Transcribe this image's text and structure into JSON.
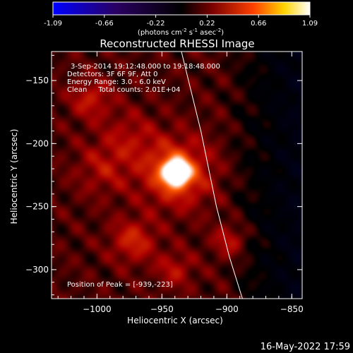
{
  "chart_data": {
    "type": "heatmap",
    "title": "Reconstructed RHESSI Image",
    "colorbar": {
      "min": -1.09,
      "max": 1.09,
      "ticks": [
        "-1.09",
        "-0.66",
        "-0.22",
        "0.22",
        "0.66",
        "1.09"
      ],
      "unit_label_parts": [
        "(photons cm",
        "-2",
        " s",
        "-1",
        " asec",
        "-2",
        ")"
      ],
      "colormap": [
        "#0000ff",
        "#1a0030",
        "#000000",
        "#7a0000",
        "#ff4000",
        "#ffd400",
        "#ffffff"
      ]
    },
    "annotations": {
      "line1": "3-Sep-2014 19:12:48.000 to 19:18:48.000",
      "line2": "Detectors: 3F 6F 9F, Att 0",
      "line3": "Energy Range: 3.0 - 6.0 keV",
      "line4": "Clean     Total counts: 2.01E+04",
      "peak": "Position of Peak = [-939,-223]"
    },
    "xlabel": "Heliocentric X (arcsec)",
    "ylabel": "Heliocentric Y (arcsec)",
    "xlim": [
      -1035,
      -842
    ],
    "ylim": [
      -323,
      -127
    ],
    "xticks": [
      -1000,
      -950,
      -900,
      -850
    ],
    "xtick_labels": [
      "−1000",
      "−950",
      "−900",
      "−850"
    ],
    "yticks": [
      -150,
      -200,
      -250,
      -300
    ],
    "ytick_labels": [
      "−150",
      "−200",
      "−250",
      "−300"
    ],
    "peak": {
      "x": -939,
      "y": -223
    },
    "sources": [
      {
        "x": -939,
        "y": -223,
        "intensity": 1.09,
        "sigma": 7
      },
      {
        "x": -939,
        "y": -223,
        "intensity": 0.55,
        "sigma": 18
      },
      {
        "x": -972,
        "y": -277,
        "intensity": 0.35,
        "sigma": 12
      },
      {
        "x": -1005,
        "y": -165,
        "intensity": 0.3,
        "sigma": 11
      },
      {
        "x": -897,
        "y": -277,
        "intensity": 0.3,
        "sigma": 9
      },
      {
        "x": -940,
        "y": -300,
        "intensity": 0.25,
        "sigma": 10
      },
      {
        "x": -995,
        "y": -220,
        "intensity": 0.22,
        "sigma": 15
      },
      {
        "x": -975,
        "y": -195,
        "intensity": 0.2,
        "sigma": 15
      }
    ],
    "limb_curve": [
      [
        -935,
        -127
      ],
      [
        -920,
        -190
      ],
      [
        -908,
        -250
      ],
      [
        -898,
        -290
      ],
      [
        -888,
        -323
      ]
    ]
  },
  "footer": {
    "date": "16-May-2022 17:59"
  }
}
